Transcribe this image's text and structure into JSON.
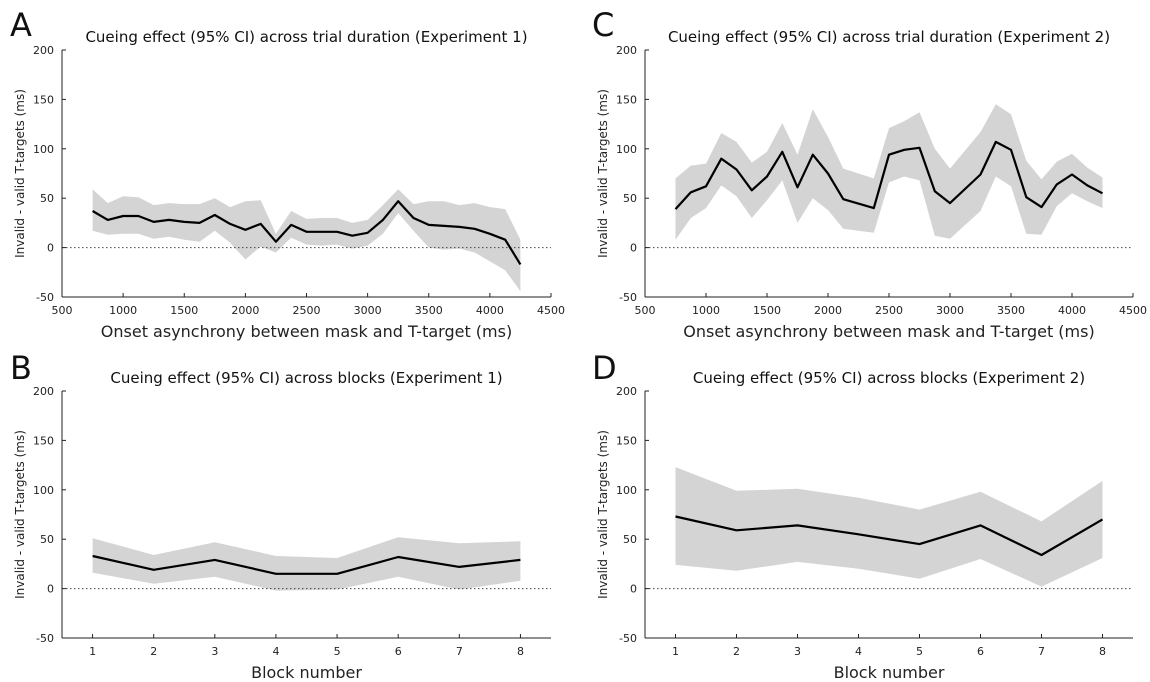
{
  "chart_data": [
    {
      "panel": "A",
      "type": "area",
      "title": "Cueing effect (95% CI) across trial duration (Experiment 1)",
      "xlabel": "Onset asynchrony between mask and T-target (ms)",
      "ylabel": "Invalid - valid T-targets (ms)",
      "xlim": [
        500,
        4500
      ],
      "ylim": [
        -50,
        200
      ],
      "xticks": [
        "500",
        "1000",
        "1500",
        "2000",
        "2500",
        "3000",
        "3500",
        "4000",
        "4500"
      ],
      "yticks": [
        "-50",
        "0",
        "50",
        "100",
        "150",
        "200"
      ],
      "xtick_values": [
        500,
        1000,
        1500,
        2000,
        2500,
        3000,
        3500,
        4000,
        4500
      ],
      "ytick_values": [
        -50,
        0,
        50,
        100,
        150,
        200
      ],
      "reference_line_y": 0,
      "colors": {
        "ci_band": "#d4d4d4",
        "mean_line": "#000000"
      },
      "x": [
        750,
        875,
        1000,
        1125,
        1250,
        1375,
        1500,
        1625,
        1750,
        1875,
        2000,
        2125,
        2250,
        2375,
        2500,
        2625,
        2750,
        2875,
        3000,
        3125,
        3250,
        3375,
        3500,
        3625,
        3750,
        3875,
        4000,
        4125,
        4250
      ],
      "series": [
        {
          "name": "",
          "role": "mean",
          "values": [
            37,
            28,
            32,
            32,
            26,
            28,
            26,
            25,
            33,
            24,
            18,
            24,
            6,
            23,
            16,
            16,
            16,
            12,
            15,
            28,
            47,
            30,
            23,
            22,
            21,
            19,
            14,
            8,
            -17
          ]
        },
        {
          "name": "",
          "role": "ci_upper",
          "values": [
            59,
            45,
            52,
            51,
            43,
            45,
            44,
            44,
            50,
            41,
            47,
            48,
            14,
            37,
            29,
            30,
            30,
            25,
            28,
            43,
            59,
            44,
            47,
            47,
            43,
            45,
            41,
            39,
            8
          ]
        },
        {
          "name": "",
          "role": "ci_lower",
          "values": [
            17,
            13,
            14,
            14,
            9,
            11,
            8,
            6,
            17,
            5,
            -12,
            1,
            -5,
            10,
            3,
            2,
            3,
            -1,
            2,
            14,
            35,
            17,
            0,
            -2,
            -1,
            -5,
            -14,
            -23,
            -44
          ]
        }
      ]
    },
    {
      "panel": "B",
      "type": "area",
      "title": "Cueing effect (95% CI) across blocks (Experiment 1)",
      "xlabel": "Block number",
      "ylabel": "Invalid - valid T-targets (ms)",
      "xlim": [
        0.5,
        8.5
      ],
      "ylim": [
        -50,
        200
      ],
      "xticks": [
        "1",
        "2",
        "3",
        "4",
        "5",
        "6",
        "7",
        "8"
      ],
      "yticks": [
        "-50",
        "0",
        "50",
        "100",
        "150",
        "200"
      ],
      "xtick_values": [
        1,
        2,
        3,
        4,
        5,
        6,
        7,
        8
      ],
      "ytick_values": [
        -50,
        0,
        50,
        100,
        150,
        200
      ],
      "reference_line_y": 0,
      "colors": {
        "ci_band": "#d4d4d4",
        "mean_line": "#000000"
      },
      "x": [
        1,
        2,
        3,
        4,
        5,
        6,
        7,
        8
      ],
      "series": [
        {
          "name": "",
          "role": "mean",
          "values": [
            33,
            19,
            29,
            15,
            15,
            32,
            22,
            29
          ]
        },
        {
          "name": "",
          "role": "ci_upper",
          "values": [
            51,
            34,
            47,
            33,
            31,
            52,
            46,
            48
          ]
        },
        {
          "name": "",
          "role": "ci_lower",
          "values": [
            16,
            5,
            12,
            -2,
            -1,
            12,
            -1,
            8
          ]
        }
      ]
    },
    {
      "panel": "C",
      "type": "area",
      "title": "Cueing effect (95% CI) across trial duration (Experiment 2)",
      "xlabel": "Onset asynchrony between mask and T-target (ms)",
      "ylabel": "Invalid - valid T-targets (ms)",
      "xlim": [
        500,
        4500
      ],
      "ylim": [
        -50,
        200
      ],
      "xticks": [
        "500",
        "1000",
        "1500",
        "2000",
        "2500",
        "3000",
        "3500",
        "4000",
        "4500"
      ],
      "yticks": [
        "-50",
        "0",
        "50",
        "100",
        "150",
        "200"
      ],
      "xtick_values": [
        500,
        1000,
        1500,
        2000,
        2500,
        3000,
        3500,
        4000,
        4500
      ],
      "ytick_values": [
        -50,
        0,
        50,
        100,
        150,
        200
      ],
      "reference_line_y": 0,
      "colors": {
        "ci_band": "#d4d4d4",
        "mean_line": "#000000"
      },
      "x": [
        750,
        875,
        1000,
        1125,
        1250,
        1375,
        1500,
        1625,
        1750,
        1875,
        2000,
        2125,
        2375,
        2500,
        2625,
        2750,
        2875,
        3000,
        3250,
        3375,
        3500,
        3625,
        3750,
        3875,
        4000,
        4125,
        4250
      ],
      "series": [
        {
          "name": "",
          "role": "mean",
          "values": [
            39,
            56,
            62,
            90,
            79,
            58,
            72,
            97,
            61,
            94,
            75,
            49,
            40,
            94,
            99,
            101,
            57,
            45,
            74,
            107,
            99,
            51,
            41,
            64,
            74,
            63,
            55
          ]
        },
        {
          "name": "",
          "role": "ci_upper",
          "values": [
            70,
            83,
            85,
            116,
            107,
            86,
            97,
            126,
            94,
            140,
            112,
            80,
            70,
            121,
            128,
            137,
            100,
            80,
            117,
            145,
            135,
            88,
            69,
            87,
            95,
            81,
            71
          ]
        },
        {
          "name": "",
          "role": "ci_lower",
          "values": [
            8,
            30,
            40,
            63,
            52,
            30,
            48,
            68,
            25,
            50,
            38,
            19,
            15,
            66,
            72,
            68,
            12,
            9,
            37,
            72,
            62,
            14,
            13,
            42,
            55,
            47,
            40
          ]
        }
      ]
    },
    {
      "panel": "D",
      "type": "area",
      "title": "Cueing effect (95% CI) across blocks (Experiment 2)",
      "xlabel": "Block number",
      "ylabel": "Invalid - valid T-targets (ms)",
      "xlim": [
        0.5,
        8.5
      ],
      "ylim": [
        -50,
        200
      ],
      "xticks": [
        "1",
        "2",
        "3",
        "4",
        "5",
        "6",
        "7",
        "8"
      ],
      "yticks": [
        "-50",
        "0",
        "50",
        "100",
        "150",
        "200"
      ],
      "xtick_values": [
        1,
        2,
        3,
        4,
        5,
        6,
        7,
        8
      ],
      "ytick_values": [
        -50,
        0,
        50,
        100,
        150,
        200
      ],
      "reference_line_y": 0,
      "colors": {
        "ci_band": "#d4d4d4",
        "mean_line": "#000000"
      },
      "x": [
        1,
        2,
        3,
        4,
        5,
        6,
        7,
        8
      ],
      "series": [
        {
          "name": "",
          "role": "mean",
          "values": [
            73,
            59,
            64,
            55,
            45,
            64,
            34,
            70
          ]
        },
        {
          "name": "",
          "role": "ci_upper",
          "values": [
            123,
            99,
            101,
            92,
            80,
            98,
            68,
            109
          ]
        },
        {
          "name": "",
          "role": "ci_lower",
          "values": [
            24,
            18,
            27,
            20,
            10,
            30,
            2,
            31
          ]
        }
      ]
    }
  ]
}
